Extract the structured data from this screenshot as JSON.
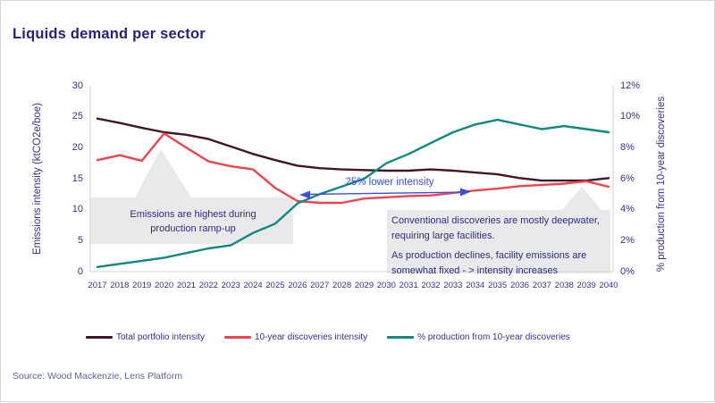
{
  "header": {
    "title": "Liquids demand per sector"
  },
  "source_text": "Source: Wood Mackenzie, Lens Platform",
  "colors": {
    "title_navy": "#252379",
    "axis_navy": "#35338a",
    "total_portfolio_line": "#421528",
    "discoveries_line": "#f2434b",
    "production_line": "#0d8981",
    "arrow_blue": "#3a4fe0",
    "callout_gray": "#e9e9ec",
    "axis_line_gray": "#d9d9d9"
  },
  "annotations": {
    "ramp_up": {
      "line1": "Emissions are highest during",
      "line2": "production ramp-up"
    },
    "arrow_label": "25% lower intensity",
    "conventional": {
      "para1": "Conventional discoveries are mostly deepwater, requiring large facilities.",
      "para2": "As production declines, facility emissions are somewhat fixed - > intensity increases"
    }
  },
  "legend": [
    {
      "label": "Total portfolio intensity",
      "color": "#421528"
    },
    {
      "label": "10-year discoveries intensity",
      "color": "#f2434b"
    },
    {
      "label": "% production from 10-year discoveries",
      "color": "#0d8981"
    }
  ],
  "chart_data": {
    "type": "line",
    "title": "Liquids demand per sector",
    "x": [
      2017,
      2018,
      2019,
      2020,
      2021,
      2022,
      2023,
      2024,
      2025,
      2026,
      2027,
      2028,
      2029,
      2030,
      2031,
      2032,
      2033,
      2034,
      2035,
      2036,
      2037,
      2038,
      2039,
      2040
    ],
    "left_axis": {
      "label": "Emissions intensity (ktCO2e/boe)",
      "range": [
        0,
        30
      ],
      "ticks": [
        0,
        5,
        10,
        15,
        20,
        25,
        30
      ]
    },
    "right_axis": {
      "label": "% production from 10-year discoveries",
      "range": [
        0,
        12
      ],
      "ticks": [
        "0%",
        "2%",
        "4%",
        "6%",
        "8%",
        "10%",
        "12%"
      ]
    },
    "grid": false,
    "legend_position": "bottom",
    "series": [
      {
        "name": "Total portfolio intensity",
        "axis": "left",
        "color": "#421528",
        "values": [
          24.7,
          24.0,
          23.2,
          22.5,
          22.1,
          21.4,
          20.2,
          19.0,
          18.0,
          17.1,
          16.7,
          16.5,
          16.4,
          16.3,
          16.3,
          16.5,
          16.3,
          16.0,
          15.7,
          15.1,
          14.7,
          14.7,
          14.7,
          15.1
        ]
      },
      {
        "name": "10-year discoveries intensity",
        "axis": "left",
        "color": "#f2434b",
        "values": [
          18.0,
          18.8,
          17.9,
          22.3,
          20.0,
          17.8,
          17.0,
          16.5,
          13.5,
          11.4,
          11.1,
          11.1,
          11.8,
          12.0,
          12.2,
          12.3,
          12.7,
          13.1,
          13.4,
          13.8,
          14.0,
          14.2,
          14.6,
          13.7
        ]
      },
      {
        "name": "% production from 10-year discoveries",
        "axis": "right",
        "color": "#0d8981",
        "values": [
          0.3,
          0.5,
          0.7,
          0.9,
          1.2,
          1.5,
          1.7,
          2.5,
          3.1,
          4.4,
          5.0,
          5.5,
          6.0,
          7.0,
          7.6,
          8.3,
          9.0,
          9.5,
          9.8,
          9.5,
          9.2,
          9.4,
          9.2,
          9.0
        ]
      }
    ]
  }
}
